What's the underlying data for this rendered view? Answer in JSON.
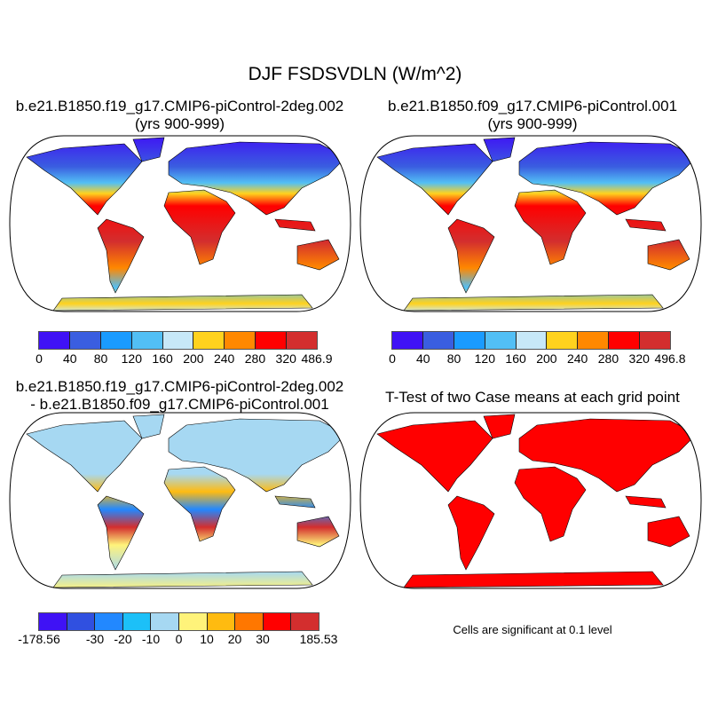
{
  "title": "DJF FSDSVDLN (W/m^2)",
  "panels": {
    "top_left": {
      "line1": "b.e21.B1850.f19_g17.CMIP6-piControl-2deg.002",
      "line2": "(yrs 900-999)"
    },
    "top_right": {
      "line1": "b.e21.B1850.f09_g17.CMIP6-piControl.001",
      "line2": "(yrs 900-999)"
    },
    "bottom_left": {
      "line1": "b.e21.B1850.f19_g17.CMIP6-piControl-2deg.002",
      "line2": "- b.e21.B1850.f09_g17.CMIP6-piControl.001"
    },
    "bottom_right": {
      "line1": "T-Test of two Case means at each grid point",
      "note": "Cells are significant at 0.1 level"
    }
  },
  "colorbars": {
    "case1": {
      "colors": [
        "#3f12f5",
        "#3a5ee0",
        "#1a9bff",
        "#52bff5",
        "#c7e8f8",
        "#ffd21e",
        "#ff8800",
        "#ff0000",
        "#d32e2e"
      ],
      "labels": [
        "0",
        "40",
        "80",
        "120",
        "160",
        "200",
        "240",
        "280",
        "320",
        "486.9"
      ]
    },
    "case2": {
      "colors": [
        "#3f12f5",
        "#3a5ee0",
        "#1a9bff",
        "#52bff5",
        "#c7e8f8",
        "#ffd21e",
        "#ff8800",
        "#ff0000",
        "#d32e2e"
      ],
      "labels": [
        "0",
        "40",
        "80",
        "120",
        "160",
        "200",
        "240",
        "280",
        "320",
        "496.8"
      ]
    },
    "diff": {
      "colors": [
        "#3f12f5",
        "#3050e0",
        "#2288ff",
        "#1cc0f8",
        "#a6d8f2",
        "#fff37a",
        "#ffbb10",
        "#ff7700",
        "#ff0000",
        "#d32e2e"
      ],
      "labels": [
        "-178.56",
        "",
        "-30",
        "-20",
        "-10",
        "0",
        "10",
        "20",
        "30",
        "",
        "185.53"
      ]
    }
  }
}
